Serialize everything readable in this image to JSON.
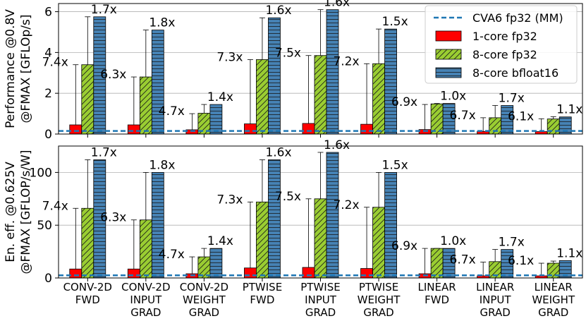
{
  "chart_data": {
    "type": "bar",
    "categories": [
      [
        "CONV-2D",
        "FWD"
      ],
      [
        "CONV-2D",
        "INPUT",
        "GRAD"
      ],
      [
        "CONV-2D",
        "WEIGHT",
        "GRAD"
      ],
      [
        "PTWISE",
        "FWD"
      ],
      [
        "PTWISE",
        "INPUT",
        "GRAD"
      ],
      [
        "PTWISE",
        "WEIGHT",
        "GRAD"
      ],
      [
        "LINEAR",
        "FWD"
      ],
      [
        "LINEAR",
        "INPUT",
        "GRAD"
      ],
      [
        "LINEAR",
        "WEIGHT",
        "GRAD"
      ]
    ],
    "legend": {
      "position": "top-right",
      "entries": [
        "CVA6 fp32 (MM)",
        "1-core fp32",
        "8-core fp32",
        "8-core bfloat16"
      ]
    },
    "colors": {
      "baseline": "#1f77b4",
      "core1": "#ff0000",
      "core8": "#9acd32",
      "bf16": "#4682b4",
      "grid": "#b0b0b0"
    },
    "panels": [
      {
        "ylabel": [
          "Performance @0.8V",
          "@FMAX [GFLOp/s]"
        ],
        "ylim": [
          0,
          6.4
        ],
        "yticks": [
          0,
          2,
          4,
          6
        ],
        "baseline": 0.15,
        "series": [
          {
            "name": "1-core fp32",
            "values": [
              0.45,
              0.45,
              0.21,
              0.5,
              0.52,
              0.48,
              0.22,
              0.13,
              0.12
            ],
            "error_max": [
              3.4,
              2.8,
              1.0,
              3.65,
              3.85,
              3.45,
              1.45,
              0.8,
              0.75
            ]
          },
          {
            "name": "8-core fp32",
            "values": [
              3.4,
              2.8,
              1.02,
              3.65,
              3.85,
              3.45,
              1.48,
              0.8,
              0.74
            ],
            "error_max": [
              5.75,
              5.1,
              1.45,
              5.7,
              6.1,
              5.15,
              1.5,
              1.4,
              0.85
            ]
          },
          {
            "name": "8-core bfloat16",
            "values": [
              5.75,
              5.1,
              1.45,
              5.7,
              6.1,
              5.15,
              1.5,
              1.4,
              0.84
            ]
          }
        ],
        "ratio_labels_left": [
          "7.4x",
          "6.3x",
          "4.7x",
          "7.3x",
          "7.5x",
          "7.2x",
          "6.9x",
          "6.7x",
          "6.1x"
        ],
        "ratio_labels_right": [
          "1.7x",
          "1.8x",
          "1.4x",
          "1.6x",
          "1.6x",
          "1.5x",
          "1.0x",
          "1.7x",
          "1.1x"
        ]
      },
      {
        "ylabel": [
          "En. eff. @0.625V",
          "@FMAX [GFLOP/s/W]"
        ],
        "ylim": [
          0,
          125
        ],
        "yticks": [
          0,
          50,
          100
        ],
        "baseline": 2.5,
        "series": [
          {
            "name": "1-core fp32",
            "values": [
              8.5,
              8.5,
              4,
              9.5,
              10,
              9,
              4,
              2,
              2
            ],
            "error_max": [
              66,
              55,
              20,
              72,
              75,
              67,
              28,
              15,
              14
            ]
          },
          {
            "name": "8-core fp32",
            "values": [
              66,
              55,
              20,
              72,
              75,
              67,
              28,
              15.5,
              14
            ],
            "error_max": [
              112,
              100,
              28,
              112,
              119,
              100,
              28,
              27,
              16
            ]
          },
          {
            "name": "8-core bfloat16",
            "values": [
              112,
              100,
              28,
              112,
              119,
              100,
              28,
              27,
              16.5
            ]
          }
        ],
        "ratio_labels_left": [
          "7.4x",
          "6.3x",
          "4.7x",
          "7.3x",
          "7.5x",
          "7.2x",
          "6.9x",
          "6.7x",
          "6.1x"
        ],
        "ratio_labels_right": [
          "1.7x",
          "1.8x",
          "1.4x",
          "1.6x",
          "1.6x",
          "1.5x",
          "1.0x",
          "1.7x",
          "1.1x"
        ]
      }
    ]
  }
}
